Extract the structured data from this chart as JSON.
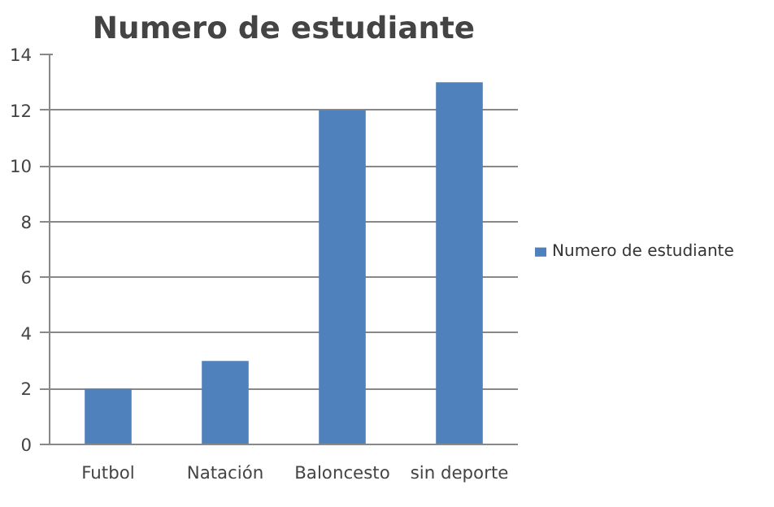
{
  "chart_data": {
    "type": "bar",
    "title": "Numero de estudiante",
    "categories": [
      "Futbol",
      "Natación",
      "Baloncesto",
      "sin deporte"
    ],
    "series": [
      {
        "name": "Numero de estudiante",
        "color": "#4f81bd",
        "values": [
          2,
          3,
          12,
          13
        ]
      }
    ],
    "ylim": [
      0,
      14
    ],
    "yticks": [
      0,
      2,
      4,
      6,
      8,
      10,
      12,
      14
    ],
    "grid": "y",
    "legend": "right"
  }
}
